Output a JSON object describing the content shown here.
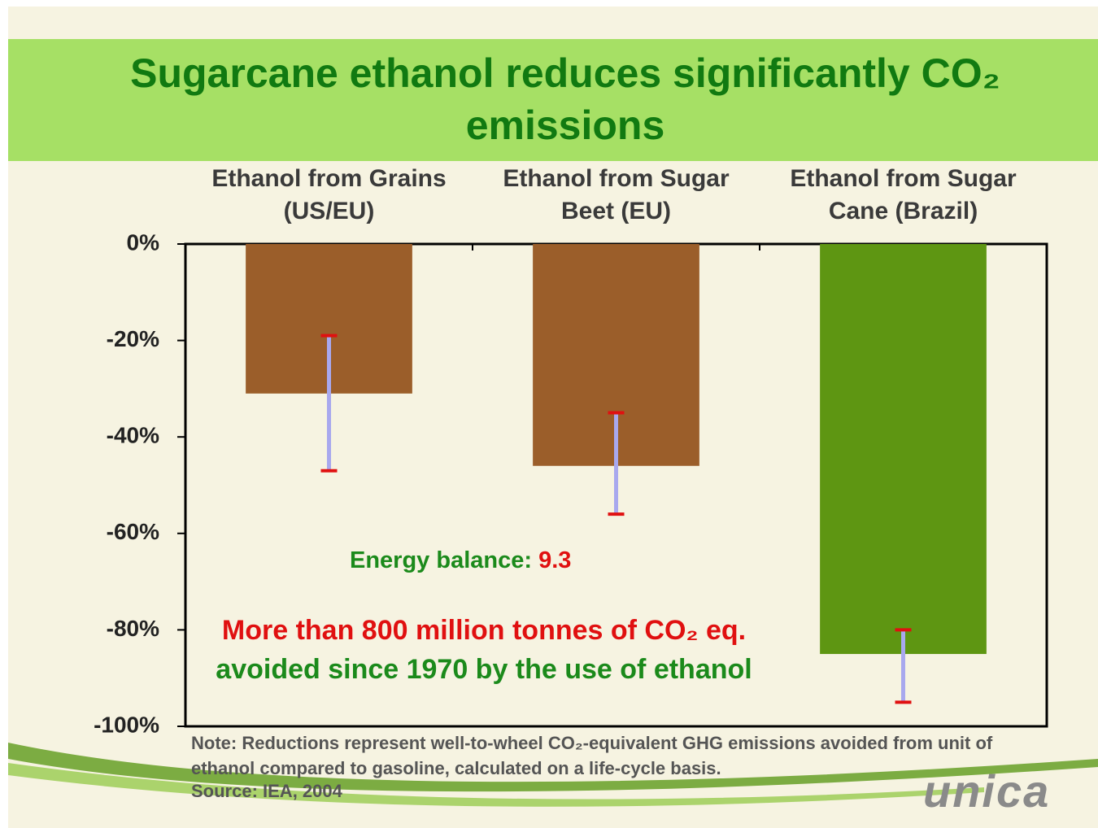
{
  "chart_data": {
    "type": "bar",
    "title": "Sugarcane ethanol reduces significantly CO₂ emissions",
    "categories": [
      "Ethanol from Grains (US/EU)",
      "Ethanol from Sugar Beet (EU)",
      "Ethanol from Sugar Cane (Brazil)"
    ],
    "values": [
      -31,
      -46,
      -85
    ],
    "error_range": [
      [
        -19,
        -47
      ],
      [
        -35,
        -56
      ],
      [
        -80,
        -95
      ]
    ],
    "colors": [
      "#9b5e2a",
      "#9b5e2a",
      "#5e9612"
    ],
    "ylim": [
      -100,
      0
    ],
    "yticks": [
      {
        "value": 0,
        "label": "0%"
      },
      {
        "value": -20,
        "label": "-20%"
      },
      {
        "value": -40,
        "label": "-40%"
      },
      {
        "value": -60,
        "label": "-60%"
      },
      {
        "value": -80,
        "label": "-80%"
      },
      {
        "value": -100,
        "label": "-100%"
      }
    ],
    "energy_balance_label": "Energy balance:",
    "energy_balance_value": 9.3,
    "annotation_red": "More than 800 million tonnes of CO₂ eq.",
    "annotation_green": "avoided since 1970 by the use of ethanol",
    "note": "Note: Reductions represent well-to-wheel CO₂-equivalent GHG emissions avoided from unit of ethanol compared to gasoline, calculated on a life-cycle basis.",
    "source": "Source: IEA, 2004",
    "logo": "unica"
  }
}
